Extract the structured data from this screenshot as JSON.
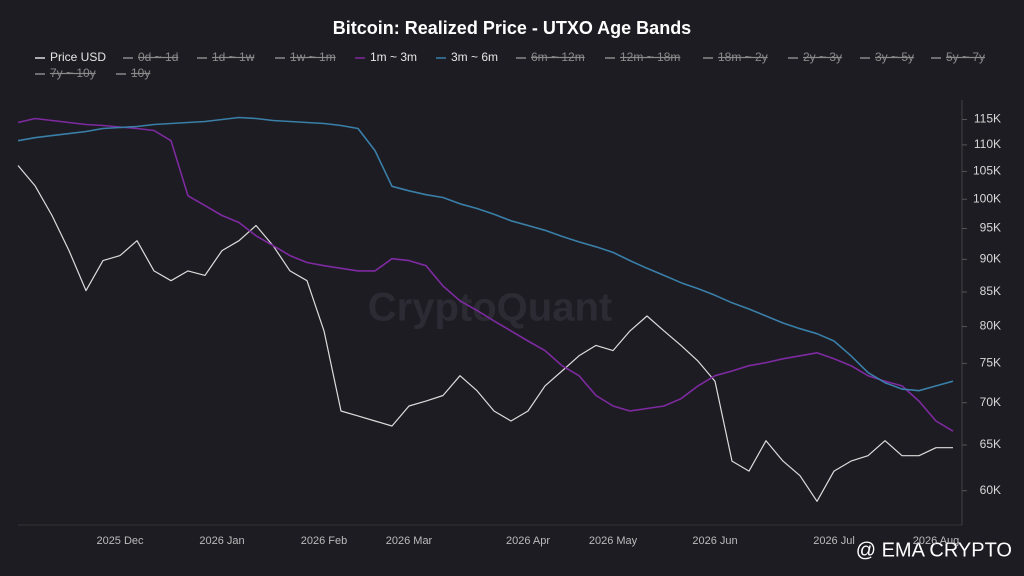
{
  "chart_data": {
    "type": "line",
    "title": "Bitcoin: Realized Price - UTXO Age Bands",
    "watermark": "CryptoQuant",
    "credit": "@ EMA CRYPTO",
    "categories": [
      null,
      null,
      null,
      null,
      null,
      null,
      "2025 Dec",
      null,
      null,
      null,
      null,
      null,
      "2026 Jan",
      null,
      null,
      null,
      null,
      null,
      "2026 Feb",
      null,
      null,
      null,
      null,
      "2026 Mar",
      null,
      null,
      null,
      null,
      null,
      null,
      "2026 Apr",
      null,
      null,
      null,
      null,
      "2026 May",
      null,
      null,
      null,
      null,
      null,
      "2026 Jun",
      null,
      null,
      null,
      null,
      null,
      null,
      "2026 Jul",
      null,
      null,
      null,
      null,
      null,
      "2026 Aug",
      null
    ],
    "yscale": "log",
    "ylim": [
      56500,
      119000
    ],
    "yticks": [
      {
        "value": 60000,
        "label": "60K"
      },
      {
        "value": 65000,
        "label": "65K"
      },
      {
        "value": 70000,
        "label": "70K"
      },
      {
        "value": 75000,
        "label": "75K"
      },
      {
        "value": 80000,
        "label": "80K"
      },
      {
        "value": 85000,
        "label": "85K"
      },
      {
        "value": 90000,
        "label": "90K"
      },
      {
        "value": 95000,
        "label": "95K"
      },
      {
        "value": 100000,
        "label": "100K"
      },
      {
        "value": 105000,
        "label": "105K"
      },
      {
        "value": 110000,
        "label": "110K"
      },
      {
        "value": 115000,
        "label": "115K"
      }
    ],
    "grid": false,
    "legend": "top",
    "series": [
      {
        "name": "Price USD",
        "color": "#dcdcdc",
        "values": [
          106100,
          102400,
          97200,
          91400,
          85200,
          89800,
          90600,
          93000,
          88200,
          86700,
          88200,
          87500,
          91400,
          93000,
          95500,
          92200,
          88200,
          86700,
          79400,
          69000,
          68400,
          67800,
          67200,
          69600,
          70200,
          70900,
          73400,
          71500,
          69000,
          67800,
          69000,
          72100,
          74000,
          76000,
          77400,
          76700,
          79400,
          81500,
          79400,
          77400,
          75300,
          72700,
          63200,
          62100,
          65500,
          63200,
          61600,
          58900,
          62100,
          63200,
          63800,
          65500,
          63800,
          63800,
          64700,
          64700
        ]
      },
      {
        "name": "0d ~ 1d",
        "hidden": true
      },
      {
        "name": "1d ~ 1w",
        "hidden": true
      },
      {
        "name": "1w ~ 1m",
        "hidden": true
      },
      {
        "name": "1m ~ 3m",
        "color": "#7e2aa0",
        "values": [
          114400,
          115200,
          114800,
          114400,
          114000,
          113800,
          113500,
          113200,
          112800,
          110800,
          100600,
          98900,
          97200,
          96000,
          93800,
          92200,
          90600,
          89500,
          89000,
          88600,
          88200,
          88200,
          90100,
          89800,
          89000,
          85900,
          83700,
          82300,
          80800,
          79400,
          78000,
          76700,
          74700,
          73400,
          70900,
          69600,
          69000,
          69300,
          69600,
          70500,
          72100,
          73400,
          74000,
          74700,
          75100,
          75600,
          76000,
          76400,
          75600,
          74700,
          73400,
          72700,
          72100,
          70200,
          67800,
          66600
        ]
      },
      {
        "name": "3m ~ 6m",
        "color": "#3a7fa8",
        "values": [
          110800,
          111400,
          111800,
          112200,
          112600,
          113200,
          113400,
          113600,
          114000,
          114200,
          114400,
          114600,
          115000,
          115400,
          115200,
          114800,
          114600,
          114400,
          114200,
          113800,
          113200,
          108900,
          102300,
          101500,
          100800,
          100300,
          99200,
          98400,
          97400,
          96300,
          95500,
          94700,
          93700,
          92800,
          92000,
          91100,
          89800,
          88600,
          87500,
          86400,
          85500,
          84500,
          83400,
          82500,
          81500,
          80500,
          79700,
          79000,
          78000,
          76000,
          73800,
          72500,
          71700,
          71500,
          72100,
          72700
        ]
      },
      {
        "name": "6m ~ 12m",
        "hidden": true
      },
      {
        "name": "12m ~ 18m",
        "hidden": true
      },
      {
        "name": "18m ~ 2y",
        "hidden": true
      },
      {
        "name": "2y ~ 3y",
        "hidden": true
      },
      {
        "name": "3y ~ 5y",
        "hidden": true
      },
      {
        "name": "5y ~ 7y",
        "hidden": true
      },
      {
        "name": "7y ~ 10y",
        "hidden": true
      },
      {
        "name": "10y",
        "hidden": true
      }
    ]
  }
}
